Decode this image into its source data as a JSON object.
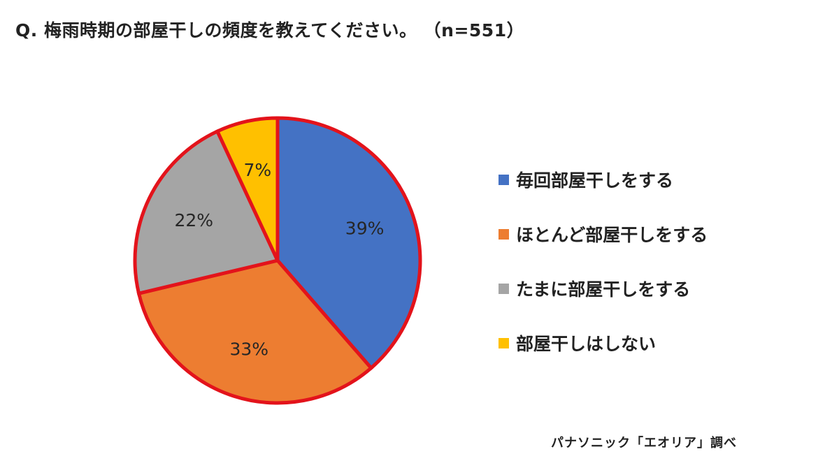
{
  "title": "Q. 梅雨時期の部屋干しの頻度を教えてください。 （n=551）",
  "source": "パナソニック「エオリア」調べ",
  "chart_data": {
    "type": "pie",
    "start_angle_deg": 0,
    "direction": "clockwise",
    "categories": [
      "毎回部屋干しをする",
      "ほとんど部屋干しをする",
      "たまに部屋干しをする",
      "部屋干しはしない"
    ],
    "values": [
      39,
      33,
      22,
      7
    ],
    "labels": [
      "39%",
      "33%",
      "22%",
      "7%"
    ],
    "colors": [
      "#4472C4",
      "#ED7D31",
      "#A5A5A5",
      "#FFC000"
    ],
    "outline_color": "#E3131B",
    "legend": "right"
  }
}
